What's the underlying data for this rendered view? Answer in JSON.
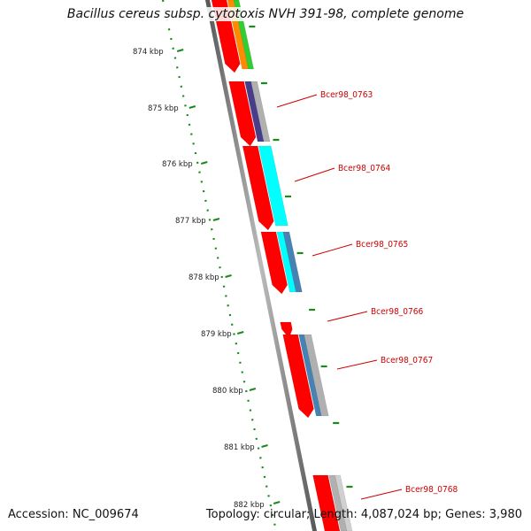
{
  "header": {
    "title": "Bacillus cereus subsp. cytotoxis NVH 391-98, complete genome"
  },
  "footer": {
    "accession": "Accession: NC_009674",
    "summary": "Topology: circular; Length: 4,087,024 bp; Genes: 3,980"
  },
  "ruler": {
    "ticks": [
      "874 kbp",
      "875 kbp",
      "876 kbp",
      "877 kbp",
      "878 kbp",
      "879 kbp",
      "880 kbp",
      "881 kbp",
      "882 kbp"
    ]
  },
  "genes": [
    {
      "label": "Bcer98_0763"
    },
    {
      "label": "Bcer98_0764"
    },
    {
      "label": "Bcer98_0765"
    },
    {
      "label": "Bcer98_0766"
    },
    {
      "label": "Bcer98_0767"
    },
    {
      "label": "Bcer98_0768"
    }
  ],
  "colors": {
    "cds": "#ff0000",
    "backbone": "#777777",
    "ruler": "#1a8a1a",
    "label": "#cc0000",
    "cyan": "#00ffff",
    "steel": "#4682b4",
    "indigo": "#483d8b",
    "gray": "#b0b0b0",
    "orange": "#ff8c00",
    "green": "#32cd32"
  }
}
